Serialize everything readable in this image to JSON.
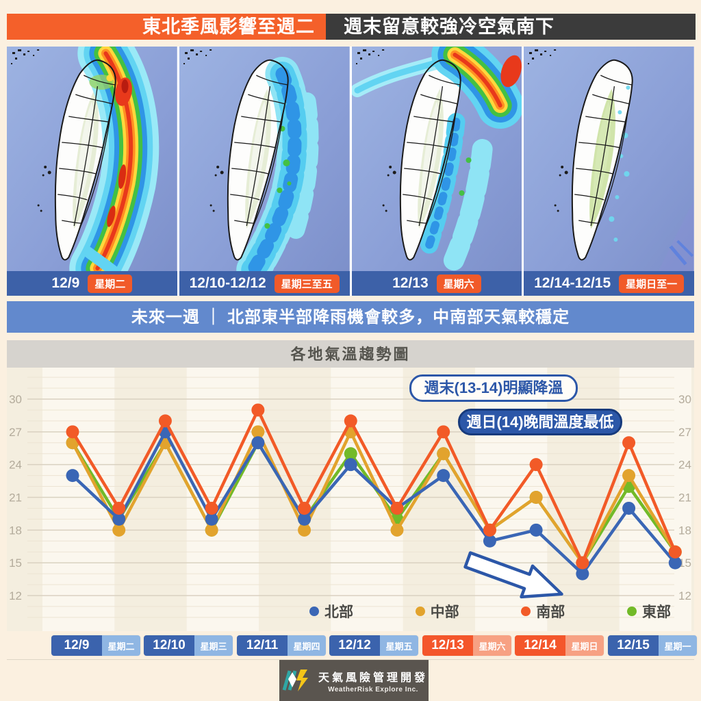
{
  "palette": {
    "page_bg": "#fbf0e0",
    "header_orange": "#f4602a",
    "header_dark": "#3b3b3b",
    "map_bar_blue": "#3d61a8",
    "badge_orange": "#f15a29",
    "banner_blue": "#6289cd",
    "title_bar_gray": "#d6d3ce",
    "annotation_blue": "#2c57a8",
    "weekday_pill_blue": "#3b63ad",
    "weekday_pill_blue_light": "#8fb6e3",
    "weekend_pill_orange": "#f4562b",
    "weekend_pill_orange_light": "#f7a183"
  },
  "header": {
    "left_title": "東北季風影響至週二",
    "right_title": "週末留意較強冷空氣南下"
  },
  "maps": {
    "panels": [
      {
        "date": "12/9",
        "weekday_badge": "星期二",
        "description": "heavy rain bands along east coast"
      },
      {
        "date": "12/10-12/12",
        "weekday_badge": "星期三至五",
        "description": "scattered showers along east coast"
      },
      {
        "date": "12/13",
        "weekday_badge": "星期六",
        "description": "heavy rain over northeast"
      },
      {
        "date": "12/14-12/15",
        "weekday_badge": "星期日至一",
        "description": "mostly stable, few light showers east"
      }
    ]
  },
  "banner": {
    "text": "未來一週 ｜ 北部東半部降雨機會較多，中南部天氣較穩定"
  },
  "chart": {
    "title": "各地氣溫趨勢圖",
    "annotations": [
      {
        "text": "週末(13-14)明顯降溫",
        "style": "outline"
      },
      {
        "text": "週日(14)晚間溫度最低",
        "style": "filled"
      }
    ],
    "axis_dates": [
      {
        "date": "12/9",
        "weekday": "星期二",
        "weekend": false
      },
      {
        "date": "12/10",
        "weekday": "星期三",
        "weekend": false
      },
      {
        "date": "12/11",
        "weekday": "星期四",
        "weekend": false
      },
      {
        "date": "12/12",
        "weekday": "星期五",
        "weekend": false
      },
      {
        "date": "12/13",
        "weekday": "星期六",
        "weekend": true
      },
      {
        "date": "12/14",
        "weekday": "星期日",
        "weekend": true
      },
      {
        "date": "12/15",
        "weekday": "星期一",
        "weekend": false
      }
    ]
  },
  "chart_data": {
    "type": "line",
    "title": "各地氣溫趨勢圖",
    "x_description": "7 days, each with day-high and night-low point",
    "categories": [
      "12/9 白天",
      "12/9 晚上",
      "12/10 白天",
      "12/10 晚上",
      "12/11 白天",
      "12/11 晚上",
      "12/12 白天",
      "12/12 晚上",
      "12/13 白天",
      "12/13 晚上",
      "12/14 白天",
      "12/14 晚上",
      "12/15 白天",
      "12/15 晚上"
    ],
    "series": [
      {
        "name": "北部",
        "color": "#3a66b5",
        "values": [
          23,
          19,
          27,
          19,
          26,
          19,
          24,
          20,
          23,
          17,
          18,
          14,
          20,
          15
        ]
      },
      {
        "name": "中部",
        "color": "#e2a32d",
        "values": [
          26,
          18,
          26,
          18,
          27,
          18,
          27,
          18,
          25,
          18,
          21,
          15,
          23,
          16
        ]
      },
      {
        "name": "南部",
        "color": "#f25a27",
        "values": [
          27,
          20,
          28,
          20,
          29,
          20,
          28,
          20,
          27,
          18,
          24,
          15,
          26,
          16
        ]
      },
      {
        "name": "東部",
        "color": "#72ba28",
        "values": [
          26,
          19,
          26,
          18,
          26,
          19,
          25,
          19,
          25,
          18,
          21,
          15,
          22,
          16
        ]
      }
    ],
    "ylim": [
      12,
      30
    ],
    "yticks": [
      12,
      15,
      18,
      21,
      24,
      27,
      30
    ],
    "grid": true,
    "legend_position": "bottom"
  },
  "footer": {
    "company_zh": "天氣風險管理開發",
    "company_en": "WeatherRisk Explore Inc."
  }
}
